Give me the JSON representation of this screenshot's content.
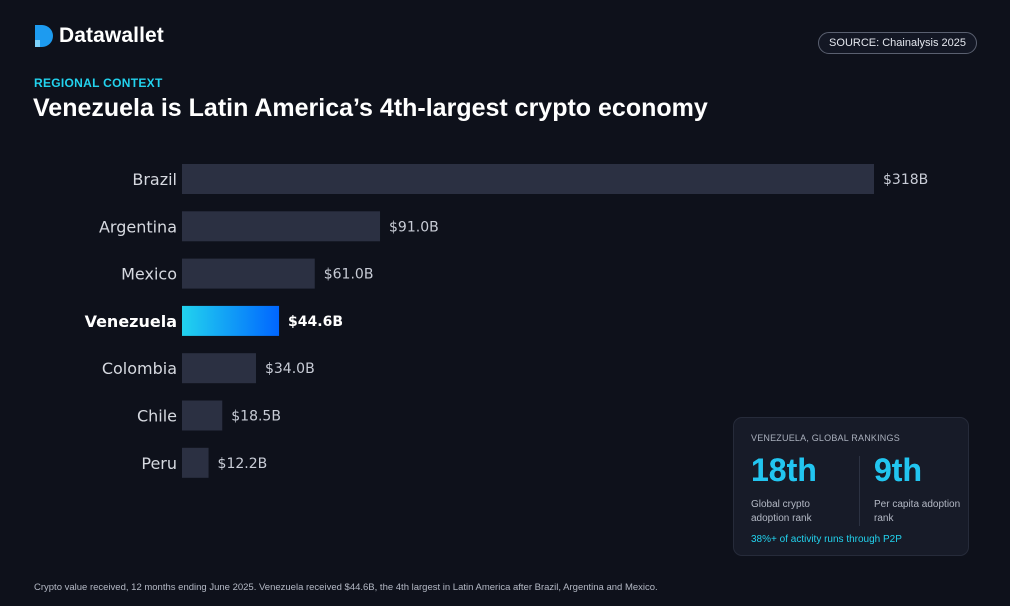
{
  "brand": {
    "name": "Datawallet",
    "logo_icon": "datawallet-d-logo-icon"
  },
  "source": "SOURCE: Chainalysis 2025",
  "eyebrow": "REGIONAL CONTEXT",
  "headline": "Venezuela is Latin America’s 4th-largest crypto economy",
  "colors": {
    "background": "#0e111b",
    "bar": "#2b3042",
    "highlight_start": "#22d3ee",
    "highlight_end": "#0066ff",
    "accent": "#22d3ee"
  },
  "chart_data": {
    "type": "bar",
    "orientation": "horizontal",
    "title": "",
    "xlabel": "",
    "ylabel": "",
    "categories": [
      "Brazil",
      "Argentina",
      "Mexico",
      "Venezuela",
      "Colombia",
      "Chile",
      "Peru"
    ],
    "values": [
      318,
      91.0,
      61.0,
      44.6,
      34.0,
      18.5,
      12.2
    ],
    "value_labels": [
      "$318B",
      "$91.0B",
      "$61.0B",
      "$44.6B",
      "$34.0B",
      "$18.5B",
      "$12.2B"
    ],
    "unit": "USD billions",
    "highlight": "Venezuela",
    "xlim": [
      0,
      318
    ],
    "grid": false,
    "legend": "none"
  },
  "card": {
    "title": "VENEZUELA, GLOBAL RANKINGS",
    "stats": [
      {
        "value": "18th",
        "caption": "Global crypto adoption rank"
      },
      {
        "value": "9th",
        "caption": "Per capita adoption rank"
      }
    ],
    "note": "38%+ of activity runs through P2P"
  },
  "footnote": "Crypto value received, 12 months ending June 2025. Venezuela received $44.6B, the 4th largest in Latin America after Brazil, Argentina and Mexico."
}
